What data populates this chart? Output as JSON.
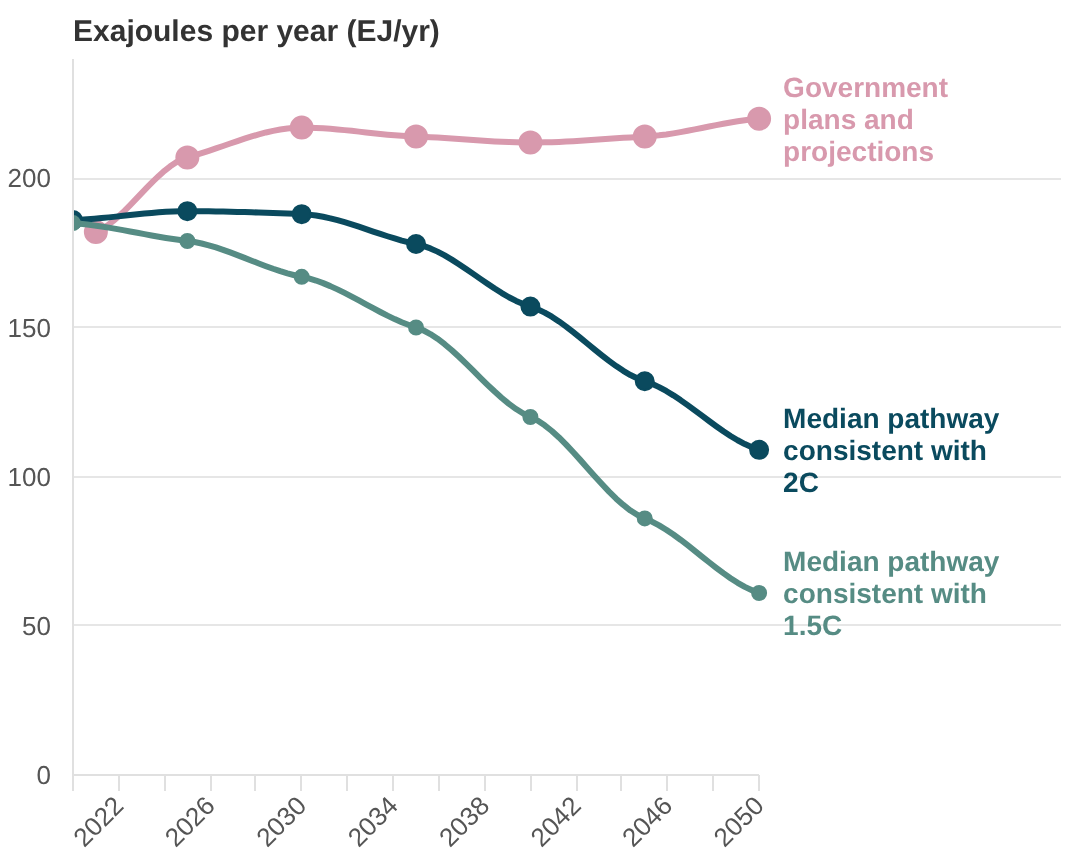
{
  "chart_data": {
    "type": "line",
    "title": "Exajoules per year (EJ/yr)",
    "xlim": [
      2020,
      2050
    ],
    "xticks": [
      {
        "value": 2020,
        "label": null
      },
      2022,
      {
        "value": 2024,
        "label": null
      },
      2026,
      {
        "value": 2028,
        "label": null
      },
      2030,
      {
        "value": 2032,
        "label": null
      },
      2034,
      {
        "value": 2036,
        "label": null
      },
      2038,
      {
        "value": 2040,
        "label": null
      },
      2042,
      {
        "value": 2044,
        "label": null
      },
      2046,
      {
        "value": 2048,
        "label": null
      },
      2050
    ],
    "ylim": [
      0,
      240
    ],
    "yticks": [
      0,
      50,
      100,
      150,
      200
    ],
    "grid": "y",
    "legend": false,
    "marker": "circle",
    "line_style": "solid",
    "series": [
      {
        "name": "Government plans and projections",
        "color": "#d899ad",
        "x": [
          2021,
          2025,
          2030,
          2035,
          2040,
          2045,
          2050
        ],
        "values": [
          182,
          207,
          217,
          214,
          212,
          214,
          220
        ]
      },
      {
        "name": "Median pathway consistent with 2C",
        "color": "#0a4a5e",
        "x": [
          2020,
          2025,
          2030,
          2035,
          2040,
          2045,
          2050
        ],
        "values": [
          186,
          189,
          188,
          178,
          157,
          132,
          109
        ]
      },
      {
        "name": "Median pathway consistent with 1.5C",
        "color": "#568c84",
        "x": [
          2020,
          2025,
          2030,
          2035,
          2040,
          2045,
          2050
        ],
        "values": [
          185,
          179,
          167,
          150,
          120,
          86,
          61
        ]
      }
    ]
  }
}
